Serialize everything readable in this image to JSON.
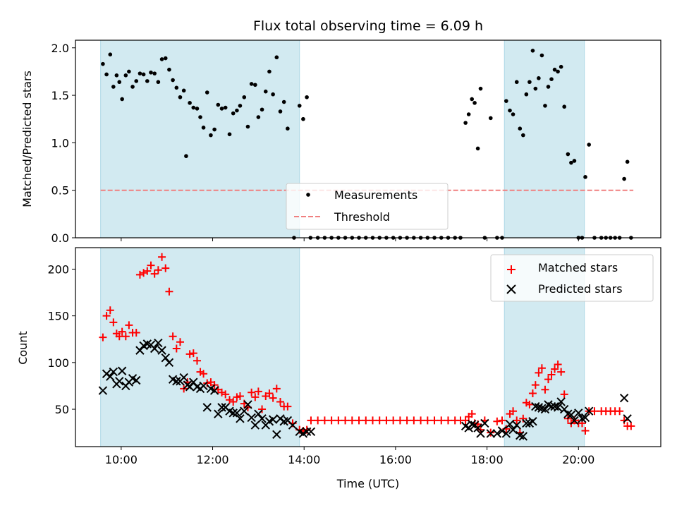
{
  "chart_data": {
    "type": "scatter",
    "title": "Flux total observing time = 6.09 h",
    "xlabel": "Time (UTC)",
    "x_tick_labels": [
      "10:00",
      "12:00",
      "14:00",
      "16:00",
      "18:00",
      "20:00"
    ],
    "x_ticks_hours": [
      10,
      12,
      14,
      16,
      18,
      20
    ],
    "xlim": [
      9.0,
      21.8
    ],
    "shaded_periods": [
      {
        "start": 9.55,
        "end": 13.9
      },
      {
        "start": 18.38,
        "end": 20.13
      }
    ],
    "colors": {
      "shade": "#add8e6",
      "measurements": "#000000",
      "threshold": "#f08080",
      "matched": "#ff0000",
      "predicted": "#000000"
    },
    "top_panel": {
      "ylabel": "Matched/Predicted stars",
      "ylim": [
        0,
        2.08
      ],
      "y_ticks": [
        0.0,
        0.5,
        1.0,
        1.5,
        2.0
      ],
      "y_tick_labels": [
        "0.0",
        "0.5",
        "1.0",
        "1.5",
        "2.0"
      ],
      "legend": [
        "Measurements",
        "Threshold"
      ],
      "threshold": 0.5,
      "threshold_range": [
        9.55,
        21.2
      ],
      "measurements": [
        [
          9.6,
          1.83
        ],
        [
          9.68,
          1.72
        ],
        [
          9.76,
          1.93
        ],
        [
          9.83,
          1.59
        ],
        [
          9.9,
          1.71
        ],
        [
          9.96,
          1.64
        ],
        [
          10.02,
          1.46
        ],
        [
          10.1,
          1.71
        ],
        [
          10.17,
          1.75
        ],
        [
          10.25,
          1.59
        ],
        [
          10.33,
          1.65
        ],
        [
          10.41,
          1.73
        ],
        [
          10.49,
          1.72
        ],
        [
          10.57,
          1.65
        ],
        [
          10.65,
          1.74
        ],
        [
          10.73,
          1.73
        ],
        [
          10.81,
          1.64
        ],
        [
          10.89,
          1.88
        ],
        [
          10.97,
          1.89
        ],
        [
          11.05,
          1.77
        ],
        [
          11.13,
          1.66
        ],
        [
          11.21,
          1.58
        ],
        [
          11.29,
          1.48
        ],
        [
          11.37,
          1.55
        ],
        [
          11.42,
          0.86
        ],
        [
          11.5,
          1.42
        ],
        [
          11.58,
          1.37
        ],
        [
          11.66,
          1.36
        ],
        [
          11.73,
          1.27
        ],
        [
          11.8,
          1.16
        ],
        [
          11.88,
          1.53
        ],
        [
          11.96,
          1.08
        ],
        [
          12.04,
          1.14
        ],
        [
          12.12,
          1.4
        ],
        [
          12.2,
          1.36
        ],
        [
          12.28,
          1.37
        ],
        [
          12.37,
          1.09
        ],
        [
          12.45,
          1.31
        ],
        [
          12.53,
          1.34
        ],
        [
          12.6,
          1.39
        ],
        [
          12.69,
          1.48
        ],
        [
          12.77,
          1.17
        ],
        [
          12.85,
          1.62
        ],
        [
          12.93,
          1.61
        ],
        [
          13.0,
          1.27
        ],
        [
          13.08,
          1.35
        ],
        [
          13.16,
          1.54
        ],
        [
          13.24,
          1.75
        ],
        [
          13.32,
          1.51
        ],
        [
          13.4,
          1.9
        ],
        [
          13.48,
          1.33
        ],
        [
          13.56,
          1.43
        ],
        [
          13.64,
          1.15
        ],
        [
          13.78,
          0.0
        ],
        [
          13.9,
          1.39
        ],
        [
          13.98,
          1.25
        ],
        [
          14.06,
          1.48
        ],
        [
          14.14,
          0.0
        ],
        [
          14.3,
          0.0
        ],
        [
          14.45,
          0.0
        ],
        [
          14.6,
          0.0
        ],
        [
          14.75,
          0.0
        ],
        [
          14.9,
          0.0
        ],
        [
          15.05,
          0.0
        ],
        [
          15.2,
          0.0
        ],
        [
          15.35,
          0.0
        ],
        [
          15.5,
          0.0
        ],
        [
          15.65,
          0.0
        ],
        [
          15.8,
          0.0
        ],
        [
          15.95,
          0.0
        ],
        [
          16.1,
          0.0
        ],
        [
          16.25,
          0.0
        ],
        [
          16.4,
          0.0
        ],
        [
          16.55,
          0.0
        ],
        [
          16.7,
          0.0
        ],
        [
          16.85,
          0.0
        ],
        [
          17.0,
          0.0
        ],
        [
          17.15,
          0.0
        ],
        [
          17.3,
          0.0
        ],
        [
          17.42,
          0.0
        ],
        [
          17.53,
          1.21
        ],
        [
          17.6,
          1.3
        ],
        [
          17.67,
          1.46
        ],
        [
          17.73,
          1.42
        ],
        [
          17.8,
          0.94
        ],
        [
          17.86,
          1.57
        ],
        [
          17.95,
          0.0
        ],
        [
          18.08,
          1.26
        ],
        [
          18.22,
          0.0
        ],
        [
          18.33,
          0.0
        ],
        [
          18.42,
          1.44
        ],
        [
          18.5,
          1.34
        ],
        [
          18.57,
          1.3
        ],
        [
          18.65,
          1.64
        ],
        [
          18.72,
          1.15
        ],
        [
          18.79,
          1.08
        ],
        [
          18.86,
          1.51
        ],
        [
          18.93,
          1.64
        ],
        [
          19.0,
          1.97
        ],
        [
          19.06,
          1.57
        ],
        [
          19.13,
          1.68
        ],
        [
          19.2,
          1.92
        ],
        [
          19.27,
          1.39
        ],
        [
          19.34,
          1.59
        ],
        [
          19.41,
          1.67
        ],
        [
          19.48,
          1.77
        ],
        [
          19.55,
          1.75
        ],
        [
          19.62,
          1.8
        ],
        [
          19.69,
          1.38
        ],
        [
          19.77,
          0.88
        ],
        [
          19.84,
          0.79
        ],
        [
          19.91,
          0.81
        ],
        [
          20.0,
          0.0
        ],
        [
          20.08,
          0.0
        ],
        [
          20.15,
          0.64
        ],
        [
          20.23,
          0.98
        ],
        [
          20.35,
          0.0
        ],
        [
          20.5,
          0.0
        ],
        [
          20.6,
          0.0
        ],
        [
          20.7,
          0.0
        ],
        [
          20.8,
          0.0
        ],
        [
          20.9,
          0.0
        ],
        [
          21.0,
          0.62
        ],
        [
          21.07,
          0.8
        ],
        [
          21.15,
          0.0
        ]
      ]
    },
    "bottom_panel": {
      "ylabel": "Count",
      "ylim": [
        10,
        223
      ],
      "y_ticks": [
        50,
        100,
        150,
        200
      ],
      "y_tick_labels": [
        "50",
        "100",
        "150",
        "200"
      ],
      "legend": [
        "Matched stars",
        "Predicted stars"
      ],
      "matched_stars": [
        [
          9.6,
          127
        ],
        [
          9.68,
          150
        ],
        [
          9.76,
          156
        ],
        [
          9.83,
          143
        ],
        [
          9.9,
          131
        ],
        [
          9.96,
          128
        ],
        [
          10.02,
          133
        ],
        [
          10.1,
          128
        ],
        [
          10.17,
          140
        ],
        [
          10.25,
          132
        ],
        [
          10.33,
          132
        ],
        [
          10.41,
          194
        ],
        [
          10.49,
          196
        ],
        [
          10.57,
          198
        ],
        [
          10.65,
          204
        ],
        [
          10.73,
          195
        ],
        [
          10.81,
          199
        ],
        [
          10.89,
          213
        ],
        [
          10.97,
          201
        ],
        [
          11.05,
          176
        ],
        [
          11.13,
          128
        ],
        [
          11.21,
          115
        ],
        [
          11.29,
          122
        ],
        [
          11.37,
          72
        ],
        [
          11.45,
          79
        ],
        [
          11.5,
          109
        ],
        [
          11.58,
          110
        ],
        [
          11.66,
          102
        ],
        [
          11.73,
          90
        ],
        [
          11.8,
          88
        ],
        [
          11.88,
          78
        ],
        [
          11.96,
          79
        ],
        [
          12.04,
          76
        ],
        [
          12.12,
          71
        ],
        [
          12.2,
          68
        ],
        [
          12.28,
          66
        ],
        [
          12.37,
          60
        ],
        [
          12.45,
          58
        ],
        [
          12.53,
          63
        ],
        [
          12.6,
          64
        ],
        [
          12.69,
          56
        ],
        [
          12.77,
          52
        ],
        [
          12.85,
          68
        ],
        [
          12.93,
          63
        ],
        [
          13.0,
          69
        ],
        [
          13.08,
          50
        ],
        [
          13.16,
          64
        ],
        [
          13.24,
          67
        ],
        [
          13.32,
          62
        ],
        [
          13.4,
          72
        ],
        [
          13.48,
          58
        ],
        [
          13.56,
          53
        ],
        [
          13.64,
          53
        ],
        [
          13.75,
          35
        ],
        [
          13.9,
          28
        ],
        [
          13.98,
          27
        ],
        [
          14.06,
          28
        ],
        [
          14.15,
          38
        ],
        [
          14.3,
          38
        ],
        [
          14.45,
          38
        ],
        [
          14.6,
          38
        ],
        [
          14.75,
          38
        ],
        [
          14.9,
          38
        ],
        [
          15.05,
          38
        ],
        [
          15.2,
          38
        ],
        [
          15.35,
          38
        ],
        [
          15.5,
          38
        ],
        [
          15.65,
          38
        ],
        [
          15.8,
          38
        ],
        [
          15.95,
          38
        ],
        [
          16.1,
          38
        ],
        [
          16.25,
          38
        ],
        [
          16.4,
          38
        ],
        [
          16.55,
          38
        ],
        [
          16.7,
          38
        ],
        [
          16.85,
          38
        ],
        [
          17.0,
          38
        ],
        [
          17.15,
          38
        ],
        [
          17.3,
          38
        ],
        [
          17.42,
          38
        ],
        [
          17.53,
          38
        ],
        [
          17.6,
          42
        ],
        [
          17.67,
          45
        ],
        [
          17.73,
          35
        ],
        [
          17.8,
          34
        ],
        [
          17.86,
          28
        ],
        [
          17.95,
          38
        ],
        [
          18.08,
          25
        ],
        [
          18.22,
          37
        ],
        [
          18.33,
          38
        ],
        [
          18.42,
          29
        ],
        [
          18.5,
          45
        ],
        [
          18.57,
          48
        ],
        [
          18.65,
          38
        ],
        [
          18.72,
          25
        ],
        [
          18.79,
          40
        ],
        [
          18.86,
          57
        ],
        [
          18.93,
          55
        ],
        [
          19.0,
          67
        ],
        [
          19.06,
          76
        ],
        [
          19.13,
          89
        ],
        [
          19.2,
          94
        ],
        [
          19.27,
          71
        ],
        [
          19.34,
          82
        ],
        [
          19.41,
          87
        ],
        [
          19.48,
          93
        ],
        [
          19.55,
          98
        ],
        [
          19.62,
          90
        ],
        [
          19.69,
          66
        ],
        [
          19.77,
          40
        ],
        [
          19.84,
          35
        ],
        [
          19.91,
          38
        ],
        [
          20.0,
          35
        ],
        [
          20.08,
          35
        ],
        [
          20.15,
          27
        ],
        [
          20.23,
          48
        ],
        [
          20.35,
          48
        ],
        [
          20.5,
          48
        ],
        [
          20.6,
          48
        ],
        [
          20.7,
          48
        ],
        [
          20.8,
          48
        ],
        [
          20.9,
          48
        ],
        [
          21.0,
          38
        ],
        [
          21.07,
          32
        ],
        [
          21.15,
          32
        ]
      ],
      "predicted_stars": [
        [
          9.6,
          70
        ],
        [
          9.68,
          88
        ],
        [
          9.76,
          85
        ],
        [
          9.83,
          90
        ],
        [
          9.9,
          77
        ],
        [
          9.96,
          80
        ],
        [
          10.02,
          91
        ],
        [
          10.1,
          75
        ],
        [
          10.17,
          79
        ],
        [
          10.25,
          83
        ],
        [
          10.33,
          81
        ],
        [
          10.41,
          113
        ],
        [
          10.49,
          118
        ],
        [
          10.57,
          120
        ],
        [
          10.65,
          119
        ],
        [
          10.73,
          115
        ],
        [
          10.81,
          121
        ],
        [
          10.89,
          113
        ],
        [
          10.97,
          105
        ],
        [
          11.05,
          100
        ],
        [
          11.13,
          82
        ],
        [
          11.21,
          80
        ],
        [
          11.29,
          80
        ],
        [
          11.37,
          84
        ],
        [
          11.45,
          76
        ],
        [
          11.5,
          74
        ],
        [
          11.58,
          79
        ],
        [
          11.66,
          74
        ],
        [
          11.73,
          72
        ],
        [
          11.8,
          75
        ],
        [
          11.88,
          52
        ],
        [
          11.96,
          72
        ],
        [
          12.04,
          70
        ],
        [
          12.12,
          45
        ],
        [
          12.2,
          52
        ],
        [
          12.28,
          52
        ],
        [
          12.37,
          48
        ],
        [
          12.45,
          46
        ],
        [
          12.53,
          46
        ],
        [
          12.6,
          40
        ],
        [
          12.69,
          48
        ],
        [
          12.77,
          55
        ],
        [
          12.85,
          41
        ],
        [
          12.93,
          33
        ],
        [
          13.0,
          45
        ],
        [
          13.08,
          40
        ],
        [
          13.16,
          33
        ],
        [
          13.24,
          37
        ],
        [
          13.32,
          39
        ],
        [
          13.4,
          23
        ],
        [
          13.48,
          40
        ],
        [
          13.56,
          37
        ],
        [
          13.64,
          38
        ],
        [
          13.75,
          33
        ],
        [
          13.9,
          26
        ],
        [
          13.98,
          24
        ],
        [
          14.06,
          26
        ],
        [
          14.15,
          26
        ],
        [
          17.53,
          32
        ],
        [
          17.6,
          30
        ],
        [
          17.67,
          34
        ],
        [
          17.73,
          33
        ],
        [
          17.8,
          30
        ],
        [
          17.86,
          24
        ],
        [
          17.95,
          35
        ],
        [
          18.08,
          24
        ],
        [
          18.22,
          24
        ],
        [
          18.33,
          27
        ],
        [
          18.42,
          24
        ],
        [
          18.5,
          34
        ],
        [
          18.57,
          28
        ],
        [
          18.65,
          33
        ],
        [
          18.72,
          22
        ],
        [
          18.79,
          21
        ],
        [
          18.86,
          35
        ],
        [
          18.93,
          35
        ],
        [
          19.0,
          37
        ],
        [
          19.06,
          53
        ],
        [
          19.13,
          52
        ],
        [
          19.2,
          51
        ],
        [
          19.27,
          50
        ],
        [
          19.34,
          55
        ],
        [
          19.41,
          53
        ],
        [
          19.48,
          53
        ],
        [
          19.55,
          52
        ],
        [
          19.62,
          58
        ],
        [
          19.69,
          50
        ],
        [
          19.77,
          45
        ],
        [
          19.84,
          44
        ],
        [
          19.91,
          38
        ],
        [
          20.0,
          46
        ],
        [
          20.08,
          40
        ],
        [
          20.15,
          41
        ],
        [
          20.23,
          48
        ],
        [
          21.0,
          62
        ],
        [
          21.07,
          40
        ]
      ]
    }
  }
}
